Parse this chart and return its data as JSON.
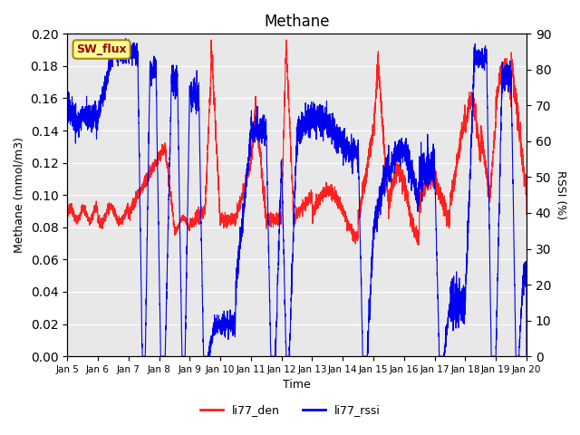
{
  "title": "Methane",
  "xlabel": "Time",
  "ylabel_left": "Methane (mmol/m3)",
  "ylabel_right": "RSSI (%)",
  "ylim_left": [
    0.0,
    0.2
  ],
  "ylim_right": [
    0,
    90
  ],
  "yticks_left": [
    0.0,
    0.02,
    0.04,
    0.06,
    0.08,
    0.1,
    0.12,
    0.14,
    0.16,
    0.18,
    0.2
  ],
  "yticks_right": [
    0,
    10,
    20,
    30,
    40,
    50,
    60,
    70,
    80,
    90
  ],
  "xtick_labels": [
    "Jan 5",
    "Jan 6",
    "Jan 7",
    "Jan 8",
    "Jan 9",
    "Jan 10",
    "Jan 11",
    "Jan 12",
    "Jan 13",
    "Jan 14",
    "Jan 15",
    "Jan 16",
    "Jan 17",
    "Jan 18",
    "Jan 19",
    "Jan 20"
  ],
  "color_red": "#FF2020",
  "color_blue": "#0000EE",
  "bg_color": "#E8E8E8",
  "fig_bg": "#FFFFFF",
  "label_red": "li77_den",
  "label_blue": "li77_rssi",
  "sw_flux_label": "SW_flux",
  "sw_flux_bg": "#FFFF99",
  "sw_flux_border": "#AA8800",
  "linewidth": 0.8
}
